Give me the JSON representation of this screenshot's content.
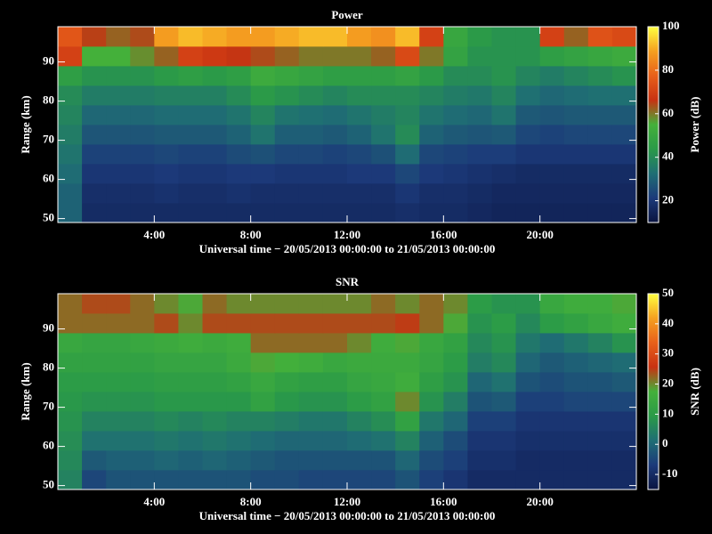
{
  "chart_data": [
    {
      "type": "heatmap",
      "title": "Power",
      "xlabel": "Universal time − 20/05/2013 00:00:00 to 21/05/2013 00:00:00",
      "ylabel": "Range (km)",
      "colorbar_label": "Power (dB)",
      "colormap": [
        "#0a1440",
        "#1c3a7a",
        "#1f6e74",
        "#2a9a48",
        "#44b03a",
        "#c83212",
        "#e8601a",
        "#f5a020",
        "#ffff40"
      ],
      "xlim": [
        0,
        24
      ],
      "xticks": [
        {
          "value": 4,
          "label": "4:00"
        },
        {
          "value": 8,
          "label": "8:00"
        },
        {
          "value": 12,
          "label": "12:00"
        },
        {
          "value": 16,
          "label": "16:00"
        },
        {
          "value": 20,
          "label": "20:00"
        }
      ],
      "ylim": [
        49,
        99
      ],
      "yticks": [
        50,
        60,
        70,
        80,
        90
      ],
      "zlim": [
        10,
        100
      ],
      "zticks": [
        20,
        40,
        60,
        80,
        100
      ],
      "xbins": [
        0,
        1,
        2,
        3,
        4,
        5,
        6,
        7,
        8,
        9,
        10,
        11,
        12,
        13,
        14,
        15,
        16,
        17,
        18,
        19,
        20,
        21,
        22,
        23,
        24
      ],
      "ybins": [
        49,
        54,
        59,
        64,
        69,
        74,
        79,
        84,
        89,
        94,
        99
      ],
      "values": [
        [
          30,
          17,
          17,
          17,
          17,
          17,
          17,
          17,
          17,
          17,
          17,
          17,
          17,
          17,
          18,
          17,
          17,
          16,
          15,
          15,
          15,
          15,
          15,
          15
        ],
        [
          30,
          18,
          18,
          18,
          19,
          18,
          18,
          19,
          18,
          18,
          18,
          18,
          18,
          18,
          20,
          18,
          18,
          17,
          16,
          16,
          16,
          16,
          16,
          16
        ],
        [
          32,
          20,
          20,
          20,
          21,
          20,
          20,
          21,
          21,
          20,
          20,
          20,
          21,
          21,
          24,
          21,
          20,
          19,
          18,
          17,
          17,
          17,
          17,
          17
        ],
        [
          34,
          23,
          23,
          23,
          24,
          23,
          23,
          25,
          26,
          24,
          24,
          23,
          24,
          26,
          32,
          24,
          23,
          22,
          22,
          20,
          20,
          20,
          20,
          20
        ],
        [
          36,
          27,
          27,
          27,
          28,
          28,
          28,
          30,
          34,
          29,
          29,
          28,
          30,
          34,
          40,
          30,
          28,
          27,
          28,
          24,
          23,
          24,
          24,
          24
        ],
        [
          38,
          31,
          31,
          31,
          32,
          32,
          32,
          34,
          38,
          34,
          33,
          32,
          34,
          36,
          38,
          34,
          32,
          31,
          34,
          28,
          27,
          28,
          28,
          28
        ],
        [
          40,
          36,
          36,
          36,
          37,
          37,
          37,
          40,
          44,
          42,
          40,
          38,
          40,
          40,
          40,
          38,
          36,
          35,
          38,
          33,
          31,
          32,
          33,
          33
        ],
        [
          46,
          42,
          42,
          42,
          44,
          46,
          44,
          46,
          52,
          50,
          48,
          46,
          46,
          46,
          48,
          44,
          40,
          40,
          42,
          38,
          36,
          38,
          40,
          42
        ],
        [
          70,
          55,
          55,
          58,
          62,
          70,
          68,
          66,
          64,
          62,
          60,
          60,
          60,
          62,
          72,
          60,
          48,
          42,
          42,
          42,
          46,
          48,
          50,
          52
        ],
        [
          75,
          65,
          62,
          64,
          88,
          92,
          90,
          88,
          88,
          90,
          92,
          92,
          88,
          86,
          92,
          70,
          50,
          44,
          42,
          42,
          70,
          62,
          74,
          72
        ]
      ]
    },
    {
      "type": "heatmap",
      "title": "SNR",
      "xlabel": "Universal time − 20/05/2013 00:00:00 to 21/05/2013 00:00:00",
      "ylabel": "Range (km)",
      "colorbar_label": "SNR (dB)",
      "colormap": [
        "#0a1440",
        "#1c3a7a",
        "#1f6e74",
        "#2a9a48",
        "#44b03a",
        "#c83212",
        "#e8601a",
        "#f5a020",
        "#ffff40"
      ],
      "xlim": [
        0,
        24
      ],
      "xticks": [
        {
          "value": 4,
          "label": "4:00"
        },
        {
          "value": 8,
          "label": "8:00"
        },
        {
          "value": 12,
          "label": "12:00"
        },
        {
          "value": 16,
          "label": "16:00"
        },
        {
          "value": 20,
          "label": "20:00"
        }
      ],
      "ylim": [
        49,
        99
      ],
      "yticks": [
        50,
        60,
        70,
        80,
        90
      ],
      "zlim": [
        -15,
        50
      ],
      "zticks": [
        -10,
        0,
        10,
        20,
        30,
        40,
        50
      ],
      "xbins": [
        0,
        1,
        2,
        3,
        4,
        5,
        6,
        7,
        8,
        9,
        10,
        11,
        12,
        13,
        14,
        15,
        16,
        17,
        18,
        19,
        20,
        21,
        22,
        23,
        24
      ],
      "ybins": [
        49,
        54,
        59,
        64,
        69,
        74,
        79,
        84,
        89,
        94,
        99
      ],
      "values": [
        [
          5,
          -5,
          -3,
          -3,
          -3,
          -3,
          -3,
          -3,
          -4,
          -4,
          -5,
          -5,
          -5,
          -5,
          -3,
          -6,
          -8,
          -10,
          -10,
          -10,
          -10,
          -10,
          -10,
          -10
        ],
        [
          6,
          -2,
          -1,
          -1,
          0,
          -1,
          0,
          -1,
          -2,
          -3,
          -3,
          -3,
          -3,
          -3,
          0,
          -4,
          -6,
          -9,
          -9,
          -10,
          -10,
          -10,
          -10,
          -10
        ],
        [
          7,
          2,
          2,
          2,
          3,
          2,
          3,
          2,
          1,
          0,
          0,
          0,
          1,
          2,
          5,
          -1,
          -4,
          -8,
          -8,
          -9,
          -9,
          -9,
          -9,
          -9
        ],
        [
          8,
          5,
          5,
          5,
          6,
          5,
          6,
          5,
          5,
          4,
          3,
          3,
          5,
          7,
          12,
          3,
          0,
          -6,
          -6,
          -8,
          -8,
          -8,
          -8,
          -8
        ],
        [
          9,
          8,
          8,
          8,
          9,
          9,
          9,
          9,
          12,
          9,
          8,
          8,
          10,
          12,
          20,
          8,
          4,
          -3,
          -2,
          -6,
          -6,
          -5,
          -5,
          -5
        ],
        [
          10,
          10,
          10,
          10,
          11,
          11,
          11,
          12,
          14,
          12,
          11,
          11,
          13,
          14,
          16,
          11,
          8,
          0,
          2,
          -3,
          -4,
          -3,
          -3,
          -2
        ],
        [
          12,
          12,
          12,
          12,
          13,
          13,
          13,
          15,
          18,
          17,
          16,
          14,
          15,
          15,
          15,
          13,
          10,
          4,
          6,
          0,
          -2,
          -1,
          0,
          1
        ],
        [
          14,
          13,
          13,
          14,
          15,
          16,
          15,
          16,
          22,
          22,
          22,
          22,
          20,
          16,
          18,
          14,
          12,
          6,
          8,
          3,
          1,
          3,
          5,
          8
        ],
        [
          22,
          22,
          22,
          22,
          24,
          20,
          24,
          24,
          24,
          24,
          24,
          24,
          24,
          24,
          25,
          22,
          18,
          8,
          10,
          6,
          10,
          12,
          14,
          16
        ],
        [
          22,
          24,
          24,
          22,
          20,
          18,
          22,
          20,
          20,
          20,
          20,
          20,
          20,
          22,
          20,
          22,
          20,
          10,
          8,
          8,
          14,
          16,
          16,
          18
        ]
      ]
    }
  ]
}
